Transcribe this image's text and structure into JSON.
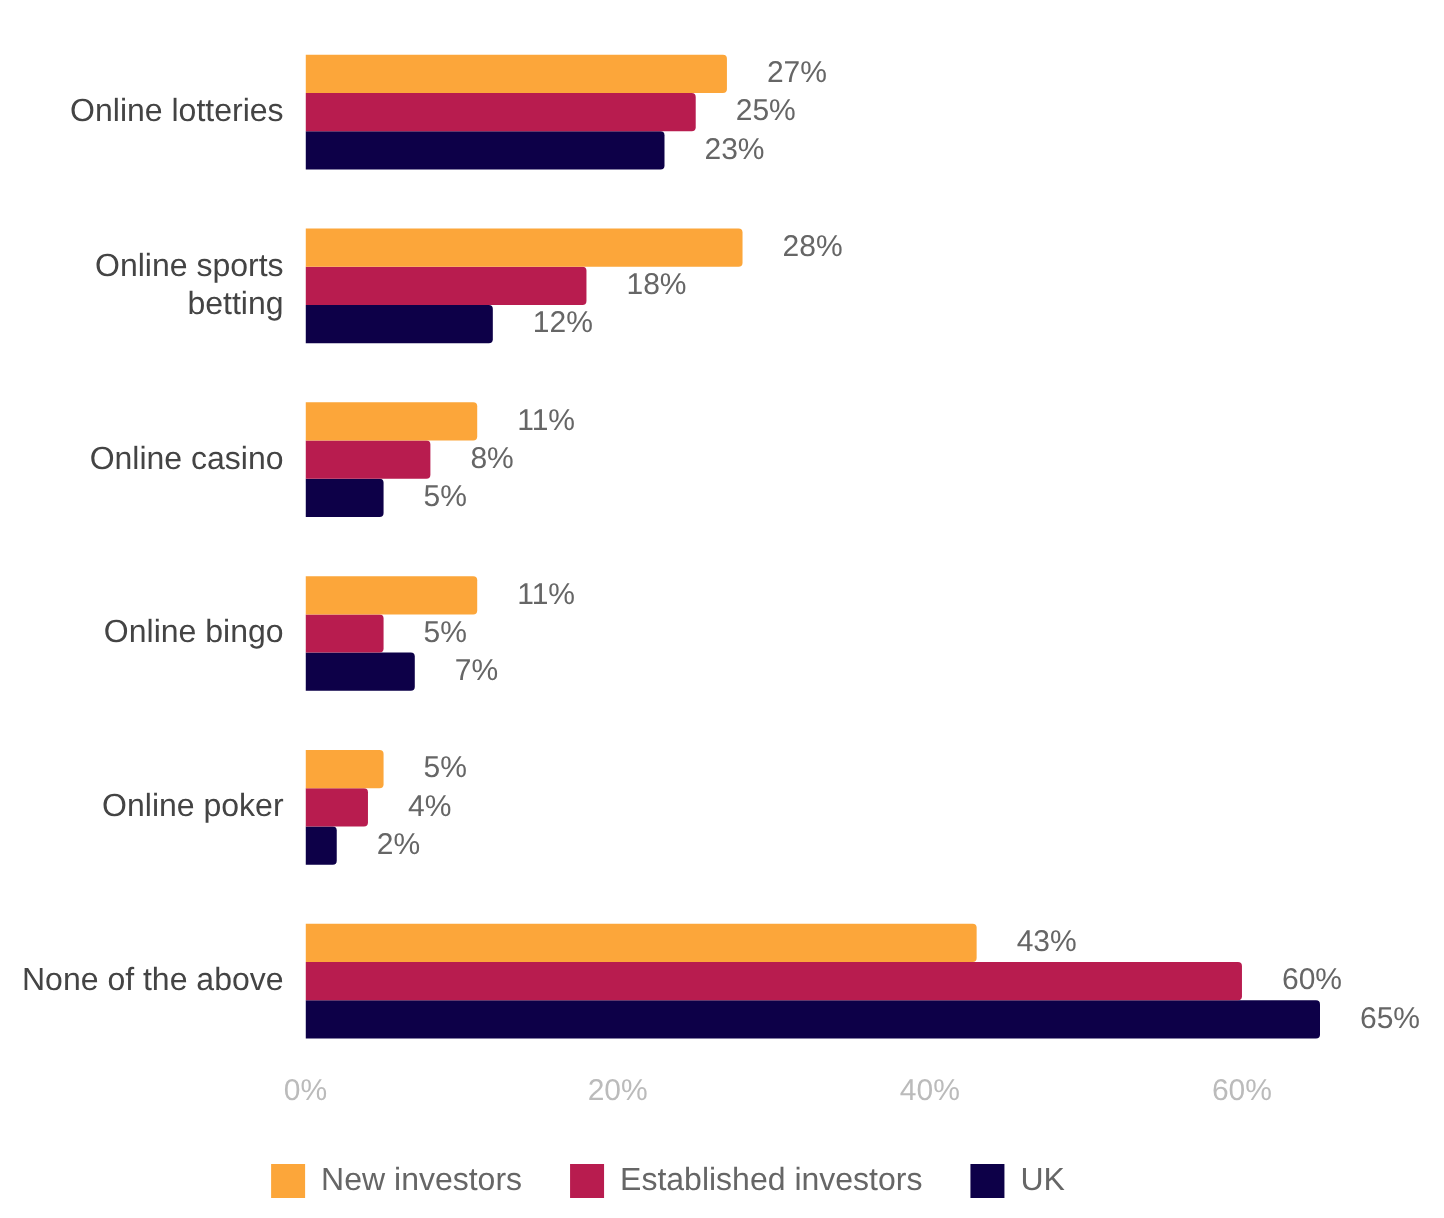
{
  "chart_data": {
    "type": "bar",
    "orientation": "horizontal",
    "categories": [
      "Online lotteries",
      "Online sports betting",
      "Online casino",
      "Online bingo",
      "Online poker",
      "None of the above"
    ],
    "series": [
      {
        "name": "New investors",
        "color": "#fca63a",
        "values": [
          27,
          28,
          11,
          11,
          5,
          43
        ],
        "value_labels": [
          "27%",
          "28%",
          "11%",
          "11%",
          "5%",
          "43%"
        ]
      },
      {
        "name": "Established investors",
        "color": "#b81c4f",
        "values": [
          25,
          18,
          8,
          5,
          4,
          60
        ],
        "value_labels": [
          "25%",
          "18%",
          "8%",
          "5%",
          "4%",
          "60%"
        ]
      },
      {
        "name": "UK",
        "color": "#0d0048",
        "values": [
          23,
          12,
          5,
          7,
          2,
          65
        ],
        "value_labels": [
          "23%",
          "12%",
          "5%",
          "7%",
          "2%",
          "65%"
        ]
      }
    ],
    "xlim": [
      0,
      65
    ],
    "xticks": [
      {
        "value": 0,
        "label": "0%"
      },
      {
        "value": 20,
        "label": "20%"
      },
      {
        "value": 40,
        "label": "40%"
      },
      {
        "value": 60,
        "label": "60%"
      }
    ],
    "grid": false,
    "legend": "bottom"
  }
}
